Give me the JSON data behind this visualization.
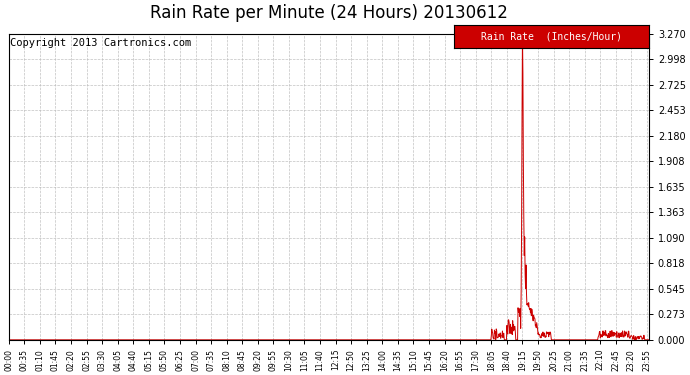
{
  "title": "Rain Rate per Minute (24 Hours) 20130612",
  "copyright": "Copyright 2013 Cartronics.com",
  "legend_label": "Rain Rate  (Inches/Hour)",
  "y_ticks": [
    0.0,
    0.273,
    0.545,
    0.818,
    1.09,
    1.363,
    1.635,
    1.908,
    2.18,
    2.453,
    2.725,
    2.998,
    3.27
  ],
  "ylim": [
    0.0,
    3.27
  ],
  "line_color": "#cc0000",
  "background_color": "#ffffff",
  "grid_color": "#bbbbbb",
  "title_fontsize": 12,
  "copyright_fontsize": 7.5,
  "legend_bg": "#cc0000",
  "legend_text_color": "#ffffff",
  "tick_step_minutes": 35,
  "total_minutes": 1440
}
